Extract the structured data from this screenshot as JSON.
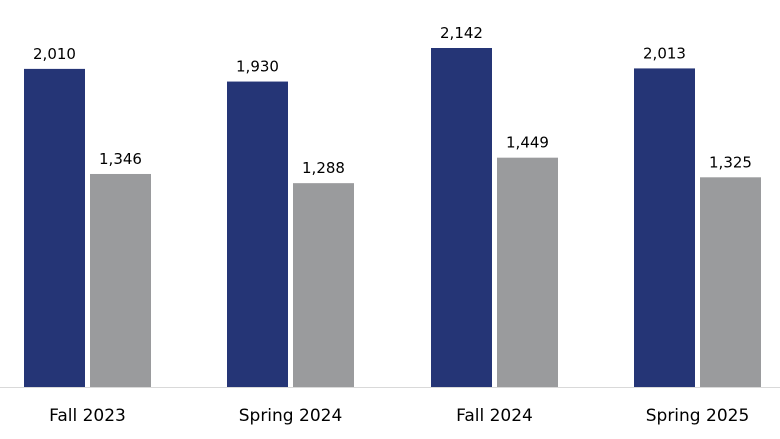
{
  "chart_data": {
    "type": "bar",
    "title": "",
    "xlabel": "",
    "ylabel": "",
    "categories": [
      "Fall 2023",
      "Spring 2024",
      "Fall 2024",
      "Spring 2025"
    ],
    "series": [
      {
        "values": [
          2010,
          1930,
          2142,
          2013
        ],
        "color": "#253576"
      },
      {
        "values": [
          1346,
          1288,
          1449,
          1325
        ],
        "color": "#9a9b9d"
      }
    ],
    "value_labels": [
      [
        "2,010",
        "1,930",
        "2,142",
        "2,013"
      ],
      [
        "1,346",
        "1,288",
        "1,449",
        "1,325"
      ]
    ],
    "ylim": [
      0,
      2142
    ],
    "grid": false,
    "legend": "none",
    "axis_color": "#d9d9d9"
  }
}
